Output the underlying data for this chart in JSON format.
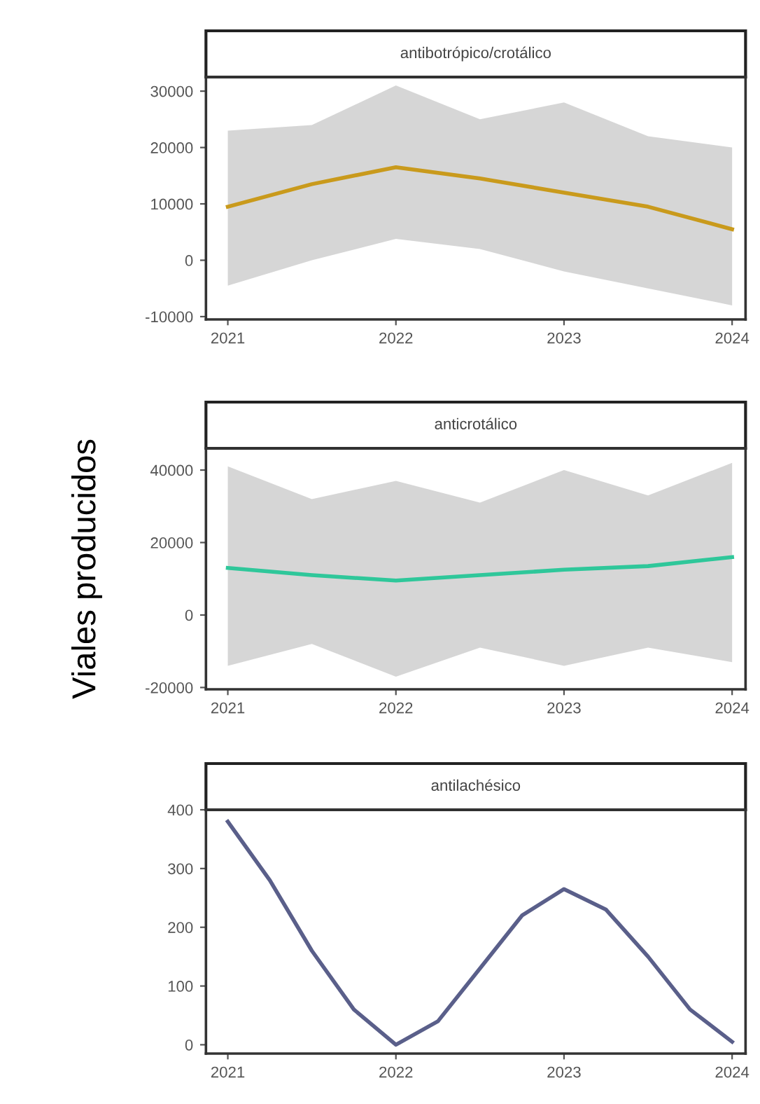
{
  "chart_data": [
    {
      "type": "line",
      "title": "antibotrópico/crotálico",
      "x": [
        2021,
        2021.5,
        2022,
        2022.5,
        2023,
        2023.5,
        2024
      ],
      "xlim": [
        2020.87,
        2024.08
      ],
      "xticks": [
        2021,
        2022,
        2023,
        2024
      ],
      "ylim": [
        -10500,
        32500
      ],
      "yticks": [
        -10000,
        0,
        10000,
        20000,
        30000
      ],
      "series": [
        {
          "color": "#c99a1c",
          "values": [
            9500,
            13500,
            16500,
            14500,
            12000,
            9500,
            5500
          ],
          "lower": [
            -4500,
            0,
            3800,
            2000,
            -2000,
            -5000,
            -8000
          ],
          "upper": [
            23000,
            24000,
            31000,
            25000,
            28000,
            22000,
            20000
          ]
        }
      ]
    },
    {
      "type": "line",
      "title": "anticrotálico",
      "ylabel": "Viales producidos",
      "x": [
        2021,
        2021.5,
        2022,
        2022.5,
        2023,
        2023.5,
        2024
      ],
      "xlim": [
        2020.87,
        2024.08
      ],
      "xticks": [
        2021,
        2022,
        2023,
        2024
      ],
      "ylim": [
        -20500,
        46000
      ],
      "yticks": [
        -20000,
        0,
        20000,
        40000
      ],
      "series": [
        {
          "color": "#2fc79a",
          "values": [
            13000,
            11000,
            9500,
            11000,
            12500,
            13500,
            16000
          ],
          "lower": [
            -14000,
            -8000,
            -17000,
            -9000,
            -14000,
            -9000,
            -13000
          ],
          "upper": [
            41000,
            32000,
            37000,
            31000,
            40000,
            33000,
            42000
          ]
        }
      ]
    },
    {
      "type": "line",
      "title": "antilachésico",
      "x": [
        2021,
        2021.25,
        2021.5,
        2021.75,
        2022,
        2022.25,
        2022.5,
        2022.75,
        2023,
        2023.25,
        2023.5,
        2023.75,
        2024
      ],
      "xlim": [
        2020.87,
        2024.08
      ],
      "xticks": [
        2021,
        2022,
        2023,
        2024
      ],
      "ylim": [
        -15,
        400
      ],
      "yticks": [
        0,
        100,
        200,
        300,
        400
      ],
      "series": [
        {
          "color": "#5a5f8a",
          "values": [
            380,
            280,
            160,
            60,
            0,
            40,
            130,
            220,
            265,
            230,
            150,
            60,
            5
          ]
        }
      ]
    }
  ]
}
